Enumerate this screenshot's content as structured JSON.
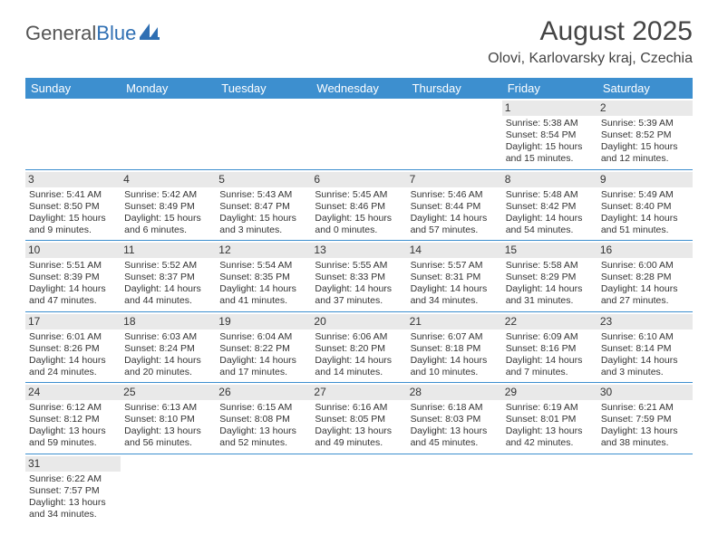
{
  "logo": {
    "text_a": "General",
    "text_b": "Blue"
  },
  "title": "August 2025",
  "location": "Olovi, Karlovarsky kraj, Czechia",
  "colors": {
    "header_bg": "#3d8fcf",
    "header_text": "#ffffff",
    "daynum_bg": "#e9e9e9",
    "row_border": "#3d8fcf",
    "logo_gray": "#555555",
    "logo_blue": "#2f6fb3",
    "body_text": "#333333",
    "page_bg": "#ffffff"
  },
  "weekdays": [
    "Sunday",
    "Monday",
    "Tuesday",
    "Wednesday",
    "Thursday",
    "Friday",
    "Saturday"
  ],
  "weeks": [
    [
      {
        "n": "",
        "sr": "",
        "ss": "",
        "dl": ""
      },
      {
        "n": "",
        "sr": "",
        "ss": "",
        "dl": ""
      },
      {
        "n": "",
        "sr": "",
        "ss": "",
        "dl": ""
      },
      {
        "n": "",
        "sr": "",
        "ss": "",
        "dl": ""
      },
      {
        "n": "",
        "sr": "",
        "ss": "",
        "dl": ""
      },
      {
        "n": "1",
        "sr": "Sunrise: 5:38 AM",
        "ss": "Sunset: 8:54 PM",
        "dl": "Daylight: 15 hours and 15 minutes."
      },
      {
        "n": "2",
        "sr": "Sunrise: 5:39 AM",
        "ss": "Sunset: 8:52 PM",
        "dl": "Daylight: 15 hours and 12 minutes."
      }
    ],
    [
      {
        "n": "3",
        "sr": "Sunrise: 5:41 AM",
        "ss": "Sunset: 8:50 PM",
        "dl": "Daylight: 15 hours and 9 minutes."
      },
      {
        "n": "4",
        "sr": "Sunrise: 5:42 AM",
        "ss": "Sunset: 8:49 PM",
        "dl": "Daylight: 15 hours and 6 minutes."
      },
      {
        "n": "5",
        "sr": "Sunrise: 5:43 AM",
        "ss": "Sunset: 8:47 PM",
        "dl": "Daylight: 15 hours and 3 minutes."
      },
      {
        "n": "6",
        "sr": "Sunrise: 5:45 AM",
        "ss": "Sunset: 8:46 PM",
        "dl": "Daylight: 15 hours and 0 minutes."
      },
      {
        "n": "7",
        "sr": "Sunrise: 5:46 AM",
        "ss": "Sunset: 8:44 PM",
        "dl": "Daylight: 14 hours and 57 minutes."
      },
      {
        "n": "8",
        "sr": "Sunrise: 5:48 AM",
        "ss": "Sunset: 8:42 PM",
        "dl": "Daylight: 14 hours and 54 minutes."
      },
      {
        "n": "9",
        "sr": "Sunrise: 5:49 AM",
        "ss": "Sunset: 8:40 PM",
        "dl": "Daylight: 14 hours and 51 minutes."
      }
    ],
    [
      {
        "n": "10",
        "sr": "Sunrise: 5:51 AM",
        "ss": "Sunset: 8:39 PM",
        "dl": "Daylight: 14 hours and 47 minutes."
      },
      {
        "n": "11",
        "sr": "Sunrise: 5:52 AM",
        "ss": "Sunset: 8:37 PM",
        "dl": "Daylight: 14 hours and 44 minutes."
      },
      {
        "n": "12",
        "sr": "Sunrise: 5:54 AM",
        "ss": "Sunset: 8:35 PM",
        "dl": "Daylight: 14 hours and 41 minutes."
      },
      {
        "n": "13",
        "sr": "Sunrise: 5:55 AM",
        "ss": "Sunset: 8:33 PM",
        "dl": "Daylight: 14 hours and 37 minutes."
      },
      {
        "n": "14",
        "sr": "Sunrise: 5:57 AM",
        "ss": "Sunset: 8:31 PM",
        "dl": "Daylight: 14 hours and 34 minutes."
      },
      {
        "n": "15",
        "sr": "Sunrise: 5:58 AM",
        "ss": "Sunset: 8:29 PM",
        "dl": "Daylight: 14 hours and 31 minutes."
      },
      {
        "n": "16",
        "sr": "Sunrise: 6:00 AM",
        "ss": "Sunset: 8:28 PM",
        "dl": "Daylight: 14 hours and 27 minutes."
      }
    ],
    [
      {
        "n": "17",
        "sr": "Sunrise: 6:01 AM",
        "ss": "Sunset: 8:26 PM",
        "dl": "Daylight: 14 hours and 24 minutes."
      },
      {
        "n": "18",
        "sr": "Sunrise: 6:03 AM",
        "ss": "Sunset: 8:24 PM",
        "dl": "Daylight: 14 hours and 20 minutes."
      },
      {
        "n": "19",
        "sr": "Sunrise: 6:04 AM",
        "ss": "Sunset: 8:22 PM",
        "dl": "Daylight: 14 hours and 17 minutes."
      },
      {
        "n": "20",
        "sr": "Sunrise: 6:06 AM",
        "ss": "Sunset: 8:20 PM",
        "dl": "Daylight: 14 hours and 14 minutes."
      },
      {
        "n": "21",
        "sr": "Sunrise: 6:07 AM",
        "ss": "Sunset: 8:18 PM",
        "dl": "Daylight: 14 hours and 10 minutes."
      },
      {
        "n": "22",
        "sr": "Sunrise: 6:09 AM",
        "ss": "Sunset: 8:16 PM",
        "dl": "Daylight: 14 hours and 7 minutes."
      },
      {
        "n": "23",
        "sr": "Sunrise: 6:10 AM",
        "ss": "Sunset: 8:14 PM",
        "dl": "Daylight: 14 hours and 3 minutes."
      }
    ],
    [
      {
        "n": "24",
        "sr": "Sunrise: 6:12 AM",
        "ss": "Sunset: 8:12 PM",
        "dl": "Daylight: 13 hours and 59 minutes."
      },
      {
        "n": "25",
        "sr": "Sunrise: 6:13 AM",
        "ss": "Sunset: 8:10 PM",
        "dl": "Daylight: 13 hours and 56 minutes."
      },
      {
        "n": "26",
        "sr": "Sunrise: 6:15 AM",
        "ss": "Sunset: 8:08 PM",
        "dl": "Daylight: 13 hours and 52 minutes."
      },
      {
        "n": "27",
        "sr": "Sunrise: 6:16 AM",
        "ss": "Sunset: 8:05 PM",
        "dl": "Daylight: 13 hours and 49 minutes."
      },
      {
        "n": "28",
        "sr": "Sunrise: 6:18 AM",
        "ss": "Sunset: 8:03 PM",
        "dl": "Daylight: 13 hours and 45 minutes."
      },
      {
        "n": "29",
        "sr": "Sunrise: 6:19 AM",
        "ss": "Sunset: 8:01 PM",
        "dl": "Daylight: 13 hours and 42 minutes."
      },
      {
        "n": "30",
        "sr": "Sunrise: 6:21 AM",
        "ss": "Sunset: 7:59 PM",
        "dl": "Daylight: 13 hours and 38 minutes."
      }
    ],
    [
      {
        "n": "31",
        "sr": "Sunrise: 6:22 AM",
        "ss": "Sunset: 7:57 PM",
        "dl": "Daylight: 13 hours and 34 minutes."
      },
      {
        "n": "",
        "sr": "",
        "ss": "",
        "dl": ""
      },
      {
        "n": "",
        "sr": "",
        "ss": "",
        "dl": ""
      },
      {
        "n": "",
        "sr": "",
        "ss": "",
        "dl": ""
      },
      {
        "n": "",
        "sr": "",
        "ss": "",
        "dl": ""
      },
      {
        "n": "",
        "sr": "",
        "ss": "",
        "dl": ""
      },
      {
        "n": "",
        "sr": "",
        "ss": "",
        "dl": ""
      }
    ]
  ]
}
